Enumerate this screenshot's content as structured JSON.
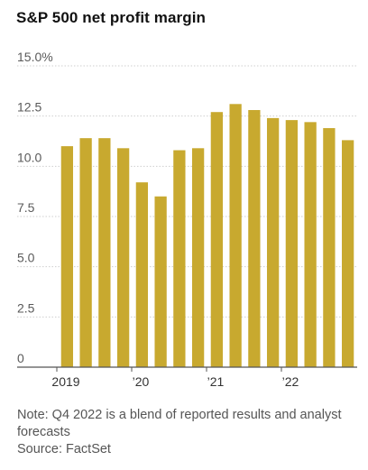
{
  "chart_data": {
    "type": "bar",
    "title": "S&P 500 net profit margin",
    "xlabel": "",
    "ylabel": "",
    "ylim": [
      0,
      15
    ],
    "yticks": [
      "15.0%",
      "12.5",
      "10.0",
      "7.5",
      "5.0",
      "2.5",
      "0"
    ],
    "ytick_values": [
      15,
      12.5,
      10,
      7.5,
      5,
      2.5,
      0
    ],
    "categories": [
      "Q1 2019",
      "Q2 2019",
      "Q3 2019",
      "Q4 2019",
      "Q1 2020",
      "Q2 2020",
      "Q3 2020",
      "Q4 2020",
      "Q1 2021",
      "Q2 2021",
      "Q3 2021",
      "Q4 2021",
      "Q1 2022",
      "Q2 2022",
      "Q3 2022",
      "Q4 2022"
    ],
    "values": [
      11.0,
      11.4,
      11.4,
      10.9,
      9.2,
      8.5,
      10.8,
      10.9,
      12.7,
      13.1,
      12.8,
      12.4,
      12.3,
      12.2,
      11.9,
      11.3
    ],
    "xtick_labels": [
      {
        "label": "2019",
        "index": 0
      },
      {
        "label": "’20",
        "index": 4
      },
      {
        "label": "’21",
        "index": 8
      },
      {
        "label": "’22",
        "index": 12
      }
    ],
    "grid": true,
    "colors": {
      "bar": "#c8a92f",
      "grid": "#cfcfcf",
      "axis": "#555555"
    }
  },
  "note": {
    "text": "Note: Q4 2022 is a blend of reported results and analyst forecasts",
    "source": "Source: FactSet"
  }
}
